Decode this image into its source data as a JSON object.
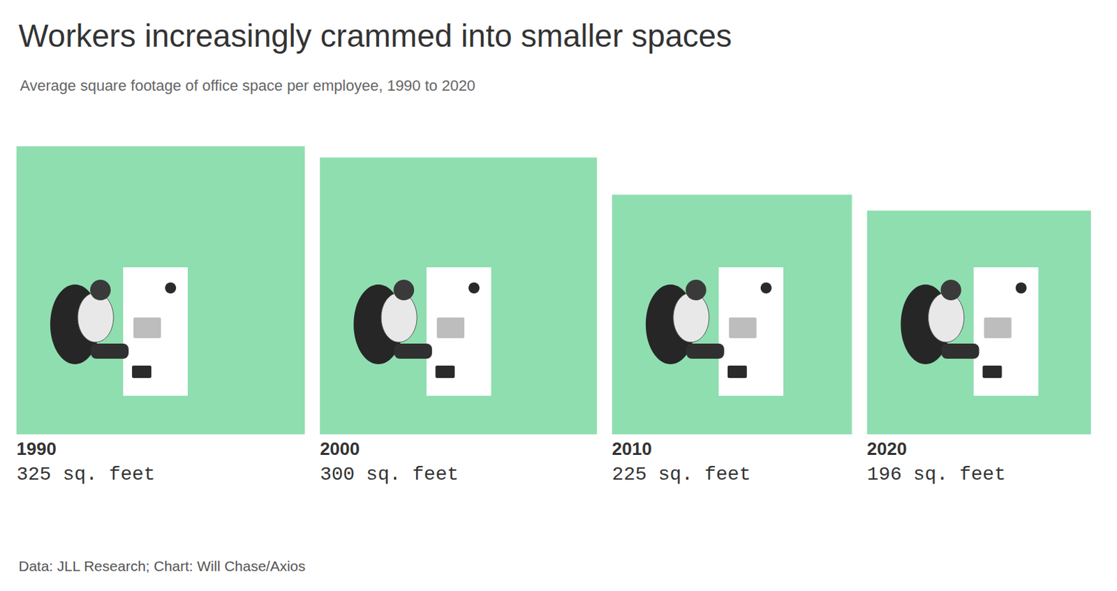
{
  "chart_data": {
    "type": "square_area",
    "title": "Workers increasingly crammed into smaller spaces",
    "subtitle": "Average square footage of office space per employee, 1990 to 2020",
    "categories": [
      "1990",
      "2000",
      "2010",
      "2020"
    ],
    "values": [
      325,
      300,
      225,
      196
    ],
    "value_labels": [
      "325 sq. feet",
      "300 sq. feet",
      "225 sq. feet",
      "196 sq. feet"
    ],
    "data_labels": true,
    "color": "#8fdeb0",
    "source": "Data: JLL Research; Chart: Will Chase/Axios"
  }
}
